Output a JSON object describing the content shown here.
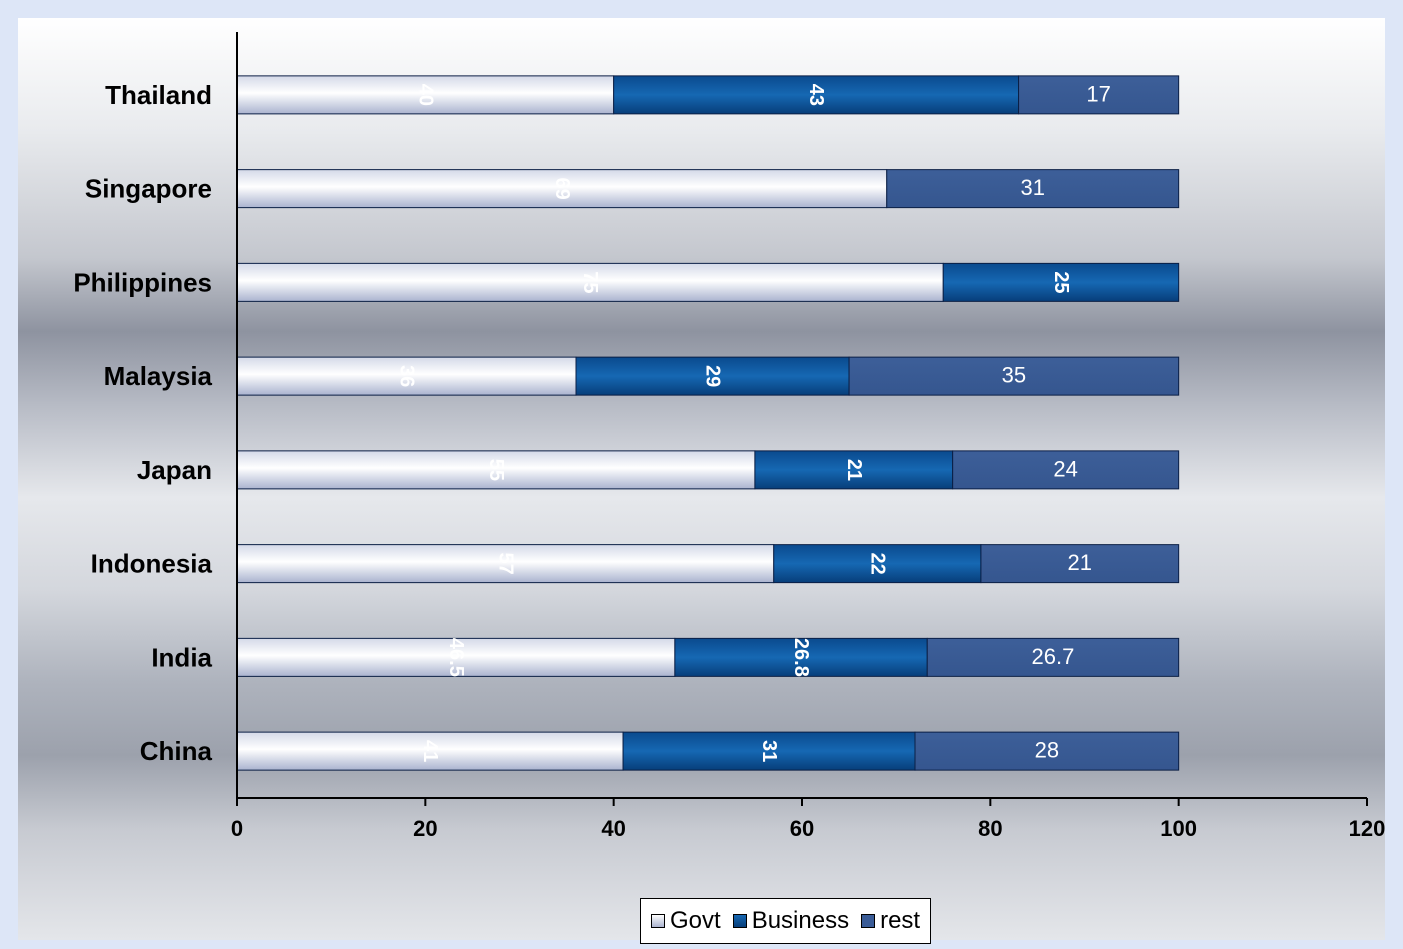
{
  "chart_data": {
    "type": "bar",
    "orientation": "horizontal",
    "stacked": true,
    "categories": [
      "Thailand",
      "Singapore",
      "Philippines",
      "Malaysia",
      "Japan",
      "Indonesia",
      "India",
      "China"
    ],
    "series": [
      {
        "name": "Govt",
        "values": [
          40,
          69,
          75,
          36,
          55,
          57,
          46.5,
          41
        ],
        "color": "#c4cce3"
      },
      {
        "name": "Business",
        "values": [
          43,
          null,
          25,
          29,
          21,
          22,
          26.8,
          31
        ],
        "color": "#0a4f95"
      },
      {
        "name": "rest",
        "values": [
          17,
          31,
          null,
          35,
          24,
          21,
          26.7,
          28
        ],
        "color": "#3a5c97"
      }
    ],
    "value_labels": [
      [
        "40",
        "43",
        "17"
      ],
      [
        "69",
        "",
        "31"
      ],
      [
        "75",
        "25",
        ""
      ],
      [
        "36",
        "29",
        "35"
      ],
      [
        "55",
        "21",
        "24"
      ],
      [
        "57",
        "22",
        "21"
      ],
      [
        "46.5",
        "26.8",
        "26.7"
      ],
      [
        "41",
        "31",
        "28"
      ]
    ],
    "xlim": [
      0,
      120
    ],
    "xticks": [
      "0",
      "20",
      "40",
      "60",
      "80",
      "100",
      "120"
    ],
    "title": "",
    "xlabel": "",
    "ylabel": "",
    "grid": false,
    "legend_position": "bottom"
  }
}
